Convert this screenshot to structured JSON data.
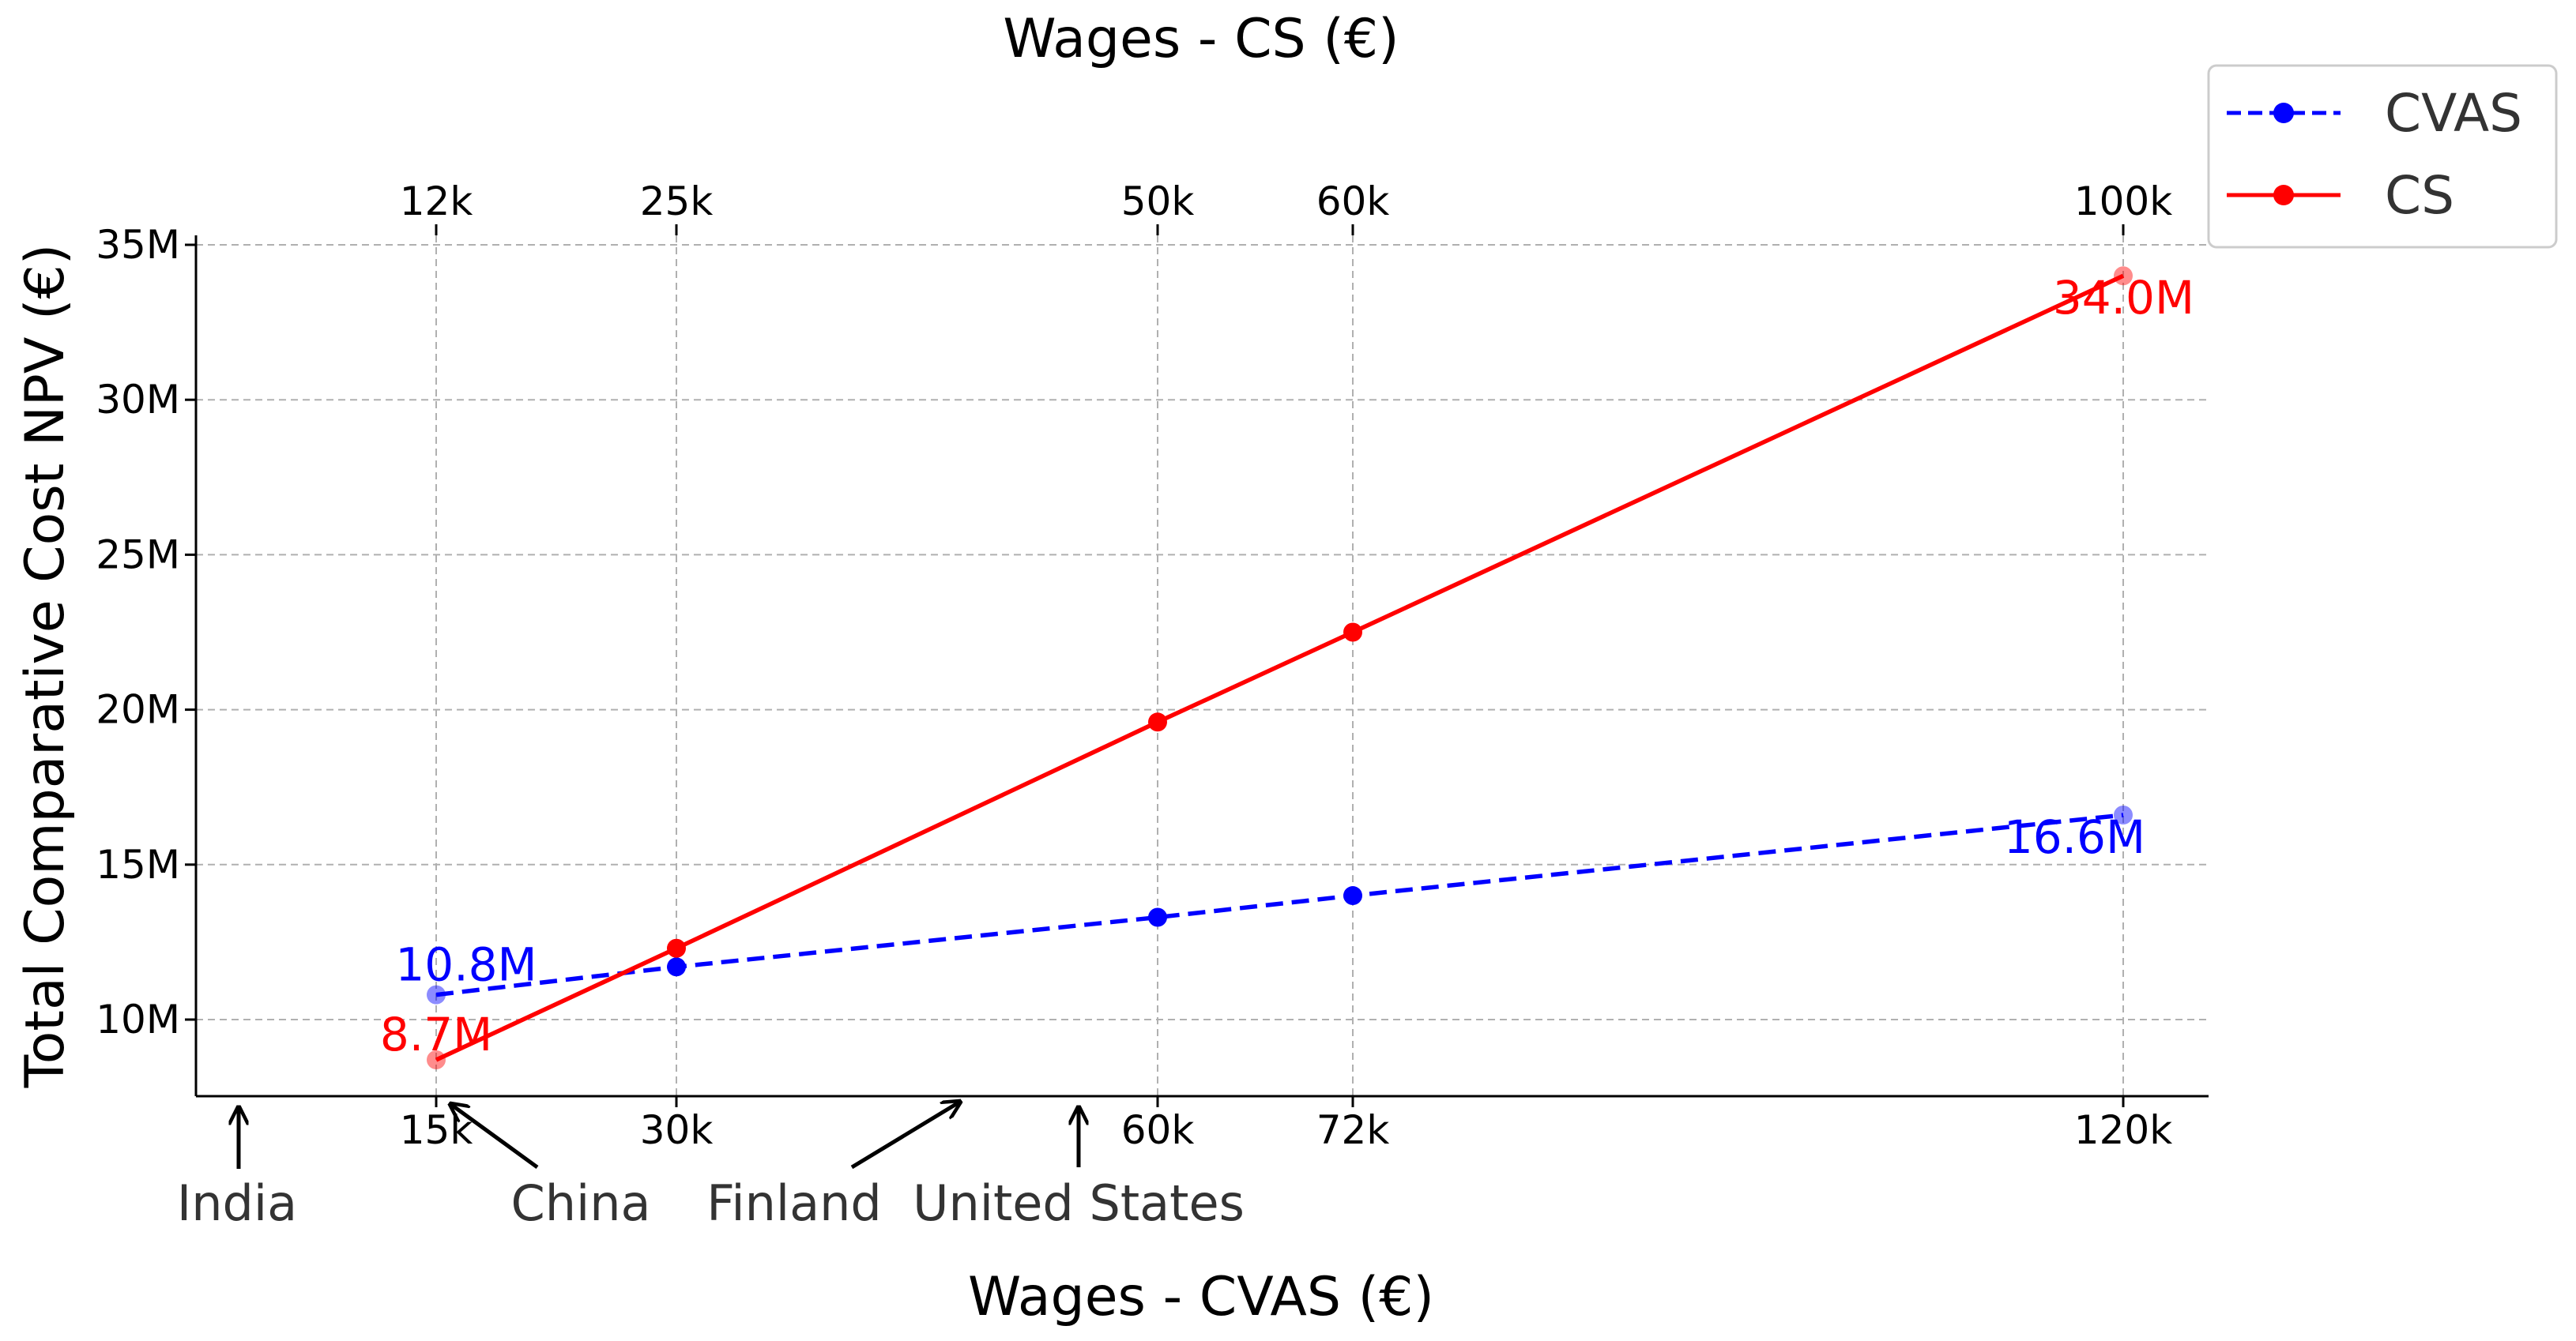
{
  "chart_data": {
    "type": "line",
    "title": "",
    "xlabel": "Wages - CVAS (€)",
    "x2label": "Wages - CS (€)",
    "ylabel": "Total Comparative Cost NPV (€)",
    "ylim": [
      7.5,
      35.5
    ],
    "y_ticks": [
      {
        "value": 10,
        "label": "10M"
      },
      {
        "value": 15,
        "label": "15M"
      },
      {
        "value": 20,
        "label": "20M"
      },
      {
        "value": 25,
        "label": "25M"
      },
      {
        "value": 30,
        "label": "30M"
      },
      {
        "value": 35,
        "label": "35M"
      }
    ],
    "x_bottom_ticks": [
      {
        "value": 15000,
        "label": "15k"
      },
      {
        "value": 30000,
        "label": "30k"
      },
      {
        "value": 60000,
        "label": "60k"
      },
      {
        "value": 72000,
        "label": "72k"
      },
      {
        "value": 120000,
        "label": "120k"
      }
    ],
    "x_top_ticks": [
      {
        "value": 12000,
        "label": "12k"
      },
      {
        "value": 25000,
        "label": "25k"
      },
      {
        "value": 50000,
        "label": "50k"
      },
      {
        "value": 60000,
        "label": "60k"
      },
      {
        "value": 100000,
        "label": "100k"
      }
    ],
    "grid": true,
    "legend_position": "top-right",
    "series": [
      {
        "name": "CVAS",
        "axis": "bottom",
        "color": "#0000ff",
        "style": "dashed",
        "points": [
          {
            "x": 15000,
            "y": 10.8
          },
          {
            "x": 30000,
            "y": 11.7
          },
          {
            "x": 60000,
            "y": 13.3
          },
          {
            "x": 72000,
            "y": 14.0
          },
          {
            "x": 120000,
            "y": 16.6
          }
        ],
        "labels": [
          {
            "index": 0,
            "text": "10.8M"
          },
          {
            "index": 4,
            "text": "16.6M"
          }
        ]
      },
      {
        "name": "CS",
        "axis": "top",
        "color": "#ff0000",
        "style": "solid",
        "points": [
          {
            "x": 12000,
            "y": 8.7
          },
          {
            "x": 25000,
            "y": 12.3
          },
          {
            "x": 50000,
            "y": 19.6
          },
          {
            "x": 60000,
            "y": 22.5
          },
          {
            "x": 100000,
            "y": 34.0
          }
        ],
        "labels": [
          {
            "index": 0,
            "text": "8.7M"
          },
          {
            "index": 4,
            "text": "34.0M"
          }
        ]
      }
    ],
    "annotations": [
      {
        "text": "India",
        "arrow": "up"
      },
      {
        "text": "China",
        "arrow": "up-left"
      },
      {
        "text": "Finland",
        "arrow": "up-right"
      },
      {
        "text": "United States",
        "arrow": "up"
      }
    ]
  }
}
